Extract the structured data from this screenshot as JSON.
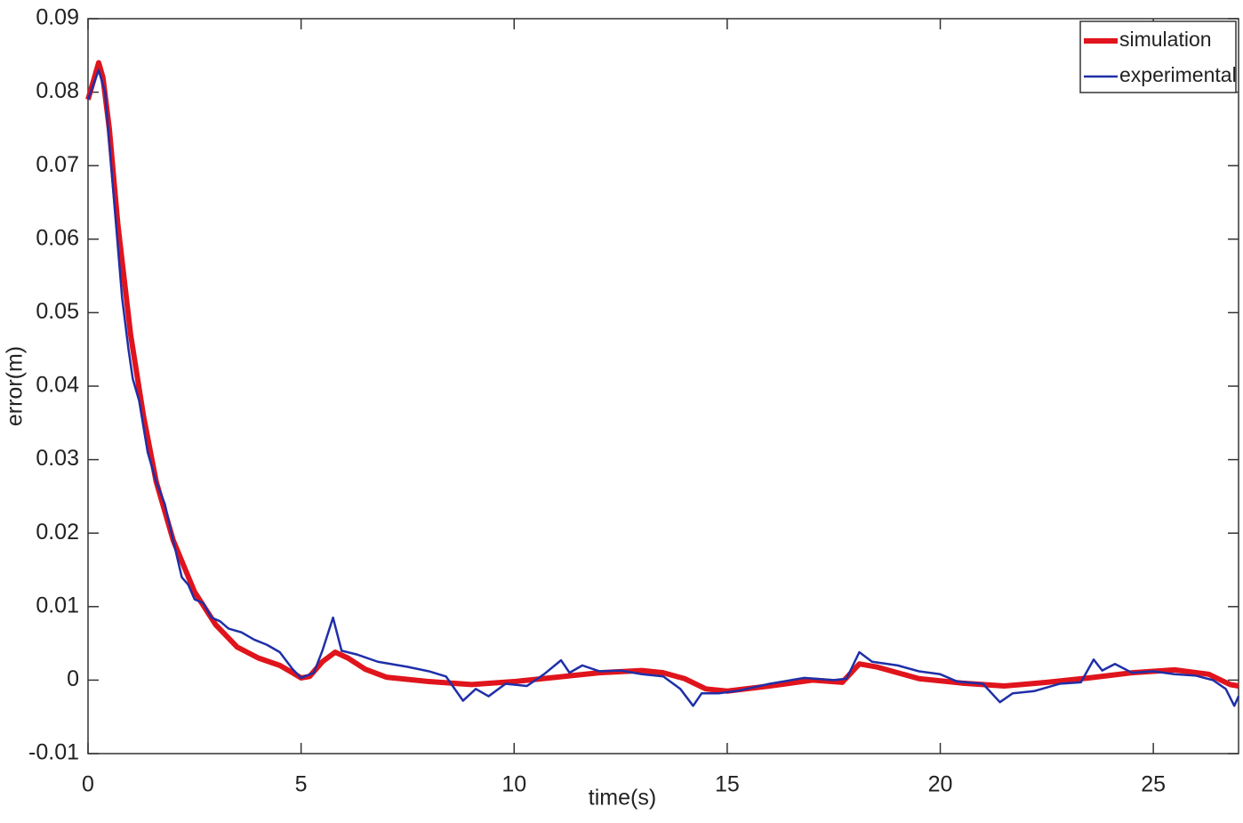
{
  "chart_data": {
    "type": "line",
    "xlabel": "time(s)",
    "ylabel": "error(m)",
    "xlim": [
      0,
      27
    ],
    "ylim": [
      -0.01,
      0.09
    ],
    "xticks": [
      0,
      5,
      10,
      15,
      20,
      25
    ],
    "yticks": [
      -0.01,
      0,
      0.01,
      0.02,
      0.03,
      0.04,
      0.05,
      0.06,
      0.07,
      0.08,
      0.09
    ],
    "legend": "upper right",
    "series": [
      {
        "name": "simulation",
        "color": "#e0141c",
        "width": 6,
        "x": [
          0,
          0.15,
          0.25,
          0.35,
          0.5,
          0.7,
          1,
          1.3,
          1.6,
          2,
          2.5,
          3,
          3.5,
          4,
          4.5,
          4.8,
          5,
          5.2,
          5.5,
          5.8,
          6.1,
          6.5,
          7,
          8,
          9,
          10,
          11,
          12,
          13,
          13.5,
          14,
          14.5,
          15,
          16,
          17,
          17.7,
          18.1,
          18.5,
          19.5,
          20.5,
          21.5,
          22.5,
          23.5,
          24.5,
          25.5,
          26.3,
          26.8,
          27
        ],
        "values": [
          0.079,
          0.082,
          0.084,
          0.082,
          0.075,
          0.062,
          0.047,
          0.036,
          0.027,
          0.019,
          0.012,
          0.0075,
          0.0045,
          0.003,
          0.002,
          0.001,
          0.0003,
          0.0005,
          0.0025,
          0.0038,
          0.003,
          0.0015,
          0.0004,
          -0.0002,
          -0.0006,
          -0.0002,
          0.0004,
          0.001,
          0.0013,
          0.001,
          0.0002,
          -0.0012,
          -0.0015,
          -0.0008,
          0,
          -0.0003,
          0.0022,
          0.0018,
          0.0002,
          -0.0004,
          -0.0008,
          -0.0003,
          0.0003,
          0.001,
          0.0014,
          0.0008,
          -0.0006,
          -0.0008
        ]
      },
      {
        "name": "experimental",
        "color": "#1f2fa8",
        "width": 2.5,
        "x": [
          0,
          0.25,
          0.4,
          0.6,
          0.8,
          0.95,
          1.05,
          1.2,
          1.4,
          1.6,
          1.8,
          2,
          2.2,
          2.35,
          2.5,
          2.7,
          2.9,
          3.1,
          3.3,
          3.6,
          3.9,
          4.2,
          4.5,
          4.8,
          5,
          5.3,
          5.5,
          5.75,
          5.95,
          6.3,
          6.8,
          7.5,
          8,
          8.4,
          8.8,
          9.1,
          9.4,
          9.8,
          10.3,
          10.7,
          11.1,
          11.3,
          11.6,
          12,
          12.5,
          13,
          13.5,
          13.9,
          14.2,
          14.4,
          14.8,
          15.3,
          16,
          16.8,
          17.5,
          17.8,
          18.1,
          18.4,
          19,
          19.5,
          20,
          20.4,
          21,
          21.4,
          21.7,
          22.2,
          22.8,
          23.3,
          23.6,
          23.8,
          24.1,
          24.5,
          25,
          25.5,
          26,
          26.4,
          26.7,
          26.9,
          27
        ],
        "values": [
          0.079,
          0.083,
          0.08,
          0.066,
          0.052,
          0.045,
          0.041,
          0.038,
          0.031,
          0.027,
          0.024,
          0.019,
          0.014,
          0.013,
          0.011,
          0.0105,
          0.0085,
          0.008,
          0.007,
          0.0065,
          0.0055,
          0.0048,
          0.0038,
          0.0015,
          0.0003,
          0.001,
          0.004,
          0.0085,
          0.004,
          0.0035,
          0.0025,
          0.0018,
          0.0012,
          0.0005,
          -0.0028,
          -0.0012,
          -0.0022,
          -0.0005,
          -0.0008,
          0.0008,
          0.0027,
          0.001,
          0.002,
          0.0012,
          0.0013,
          0.0008,
          0.0005,
          -0.0012,
          -0.0035,
          -0.0018,
          -0.0018,
          -0.0014,
          -0.0005,
          0.0003,
          0,
          0.0002,
          0.0038,
          0.0025,
          0.002,
          0.0012,
          0.0008,
          -0.0002,
          -0.0005,
          -0.003,
          -0.0018,
          -0.0015,
          -0.0005,
          -0.0003,
          0.0028,
          0.0013,
          0.0022,
          0.001,
          0.0012,
          0.0008,
          0.0006,
          0,
          -0.0012,
          -0.0035,
          -0.0022
        ]
      }
    ]
  }
}
